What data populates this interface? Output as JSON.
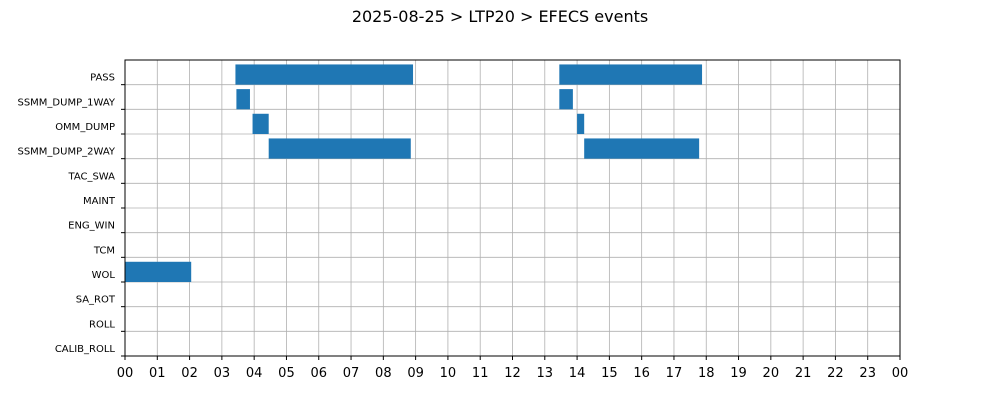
{
  "chart_data": {
    "type": "bar",
    "orientation": "horizontal-timeline",
    "title": "2025-08-25 > LTP20 > EFECS events",
    "xlabel": "",
    "ylabel": "",
    "xlim": [
      0,
      24
    ],
    "x_tick_labels": [
      "00",
      "01",
      "02",
      "03",
      "04",
      "05",
      "06",
      "07",
      "08",
      "09",
      "10",
      "11",
      "12",
      "13",
      "14",
      "15",
      "16",
      "17",
      "18",
      "19",
      "20",
      "21",
      "22",
      "23",
      "00"
    ],
    "grid": true,
    "categories": [
      "PASS",
      "SSMM_DUMP_1WAY",
      "OMM_DUMP",
      "SSMM_DUMP_2WAY",
      "TAC_SWA",
      "MAINT",
      "ENG_WIN",
      "TCM",
      "WOL",
      "SA_ROT",
      "ROLL",
      "CALIB_ROLL"
    ],
    "color": "#1f77b4",
    "events": [
      {
        "category": "PASS",
        "start": 3.42,
        "end": 8.92
      },
      {
        "category": "PASS",
        "start": 13.45,
        "end": 17.87
      },
      {
        "category": "SSMM_DUMP_1WAY",
        "start": 3.45,
        "end": 3.87
      },
      {
        "category": "SSMM_DUMP_1WAY",
        "start": 13.45,
        "end": 13.87
      },
      {
        "category": "OMM_DUMP",
        "start": 3.95,
        "end": 4.45
      },
      {
        "category": "OMM_DUMP",
        "start": 14.0,
        "end": 14.22
      },
      {
        "category": "SSMM_DUMP_2WAY",
        "start": 4.45,
        "end": 8.85
      },
      {
        "category": "SSMM_DUMP_2WAY",
        "start": 14.22,
        "end": 17.78
      },
      {
        "category": "WOL",
        "start": 0.0,
        "end": 2.05
      }
    ]
  }
}
